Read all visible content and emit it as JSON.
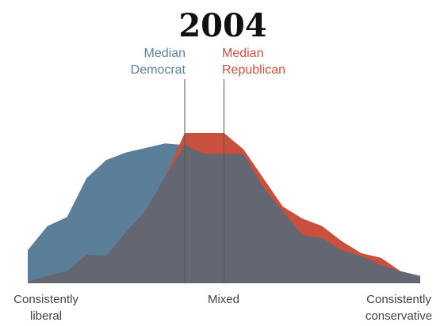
{
  "chart_data": {
    "type": "area",
    "title": "2004",
    "x": [
      0,
      1,
      2,
      3,
      4,
      5,
      6,
      7,
      8,
      9,
      10,
      11,
      12,
      13,
      14,
      15,
      16,
      17,
      18,
      19,
      20
    ],
    "series": [
      {
        "group": "democrat",
        "color": "#5b7f99",
        "values": [
          22,
          38,
          44,
          70,
          82,
          87,
          90,
          93,
          92,
          86,
          86,
          86,
          64,
          48,
          32,
          30,
          22,
          18,
          12,
          8,
          5
        ]
      },
      {
        "group": "republican",
        "color": "#c9503f",
        "values": [
          1,
          5,
          8,
          19,
          18,
          34,
          48,
          71,
          100,
          100,
          100,
          89,
          70,
          51,
          43,
          38,
          28,
          20,
          17,
          8,
          4
        ]
      }
    ],
    "overlap_color": "#646672",
    "medians": [
      {
        "group": "democrat",
        "x": 8.0,
        "color": "#5b7f99",
        "line1": "Median",
        "line2": "Democrat"
      },
      {
        "group": "republican",
        "x": 10.0,
        "color": "#c9503f",
        "line1": "Median",
        "line2": "Republican"
      }
    ],
    "axis_labels": {
      "left": [
        "Consistently",
        "liberal"
      ],
      "center": "Mixed",
      "right": [
        "Consistently",
        "conservative"
      ]
    },
    "grid": false,
    "legend": "none"
  }
}
